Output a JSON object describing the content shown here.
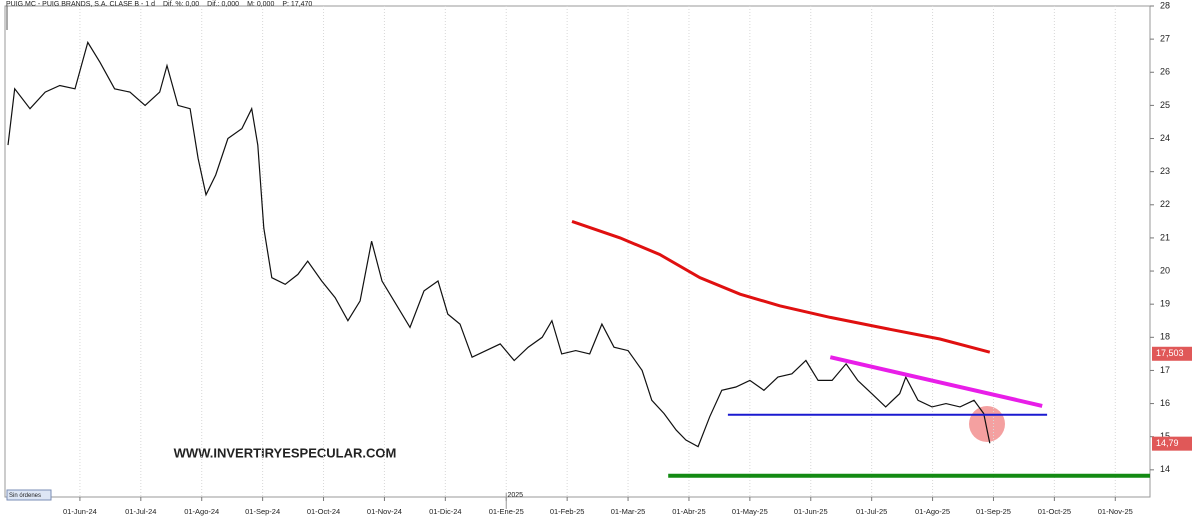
{
  "chart_data": {
    "type": "line",
    "header": [
      "PUIG.MC - PUIG BRANDS, S.A. CLASE B - 1 d",
      "Dif. %: 0,00",
      "Dif.: 0,000",
      "M: 0,000",
      "P: 17,470"
    ],
    "watermark": "WWW.INVERTIRYESPECULAR.COM",
    "year_marker": {
      "value": 7.0,
      "label": "2025"
    },
    "status": "Sin órdenes",
    "xlim": [
      -1.23,
      17.57
    ],
    "ylim": [
      13.18,
      28.0
    ],
    "yticks": [
      14,
      15,
      16,
      17,
      18,
      19,
      20,
      21,
      22,
      23,
      24,
      25,
      26,
      27,
      28
    ],
    "xticks": [
      {
        "value": 0,
        "label": "01-Jun-24"
      },
      {
        "value": 1,
        "label": "01-Jul-24"
      },
      {
        "value": 2,
        "label": "01-Ago-24"
      },
      {
        "value": 3,
        "label": "01-Sep-24"
      },
      {
        "value": 4,
        "label": "01-Oct-24"
      },
      {
        "value": 5,
        "label": "01-Nov-24"
      },
      {
        "value": 6,
        "label": "01-Dic-24"
      },
      {
        "value": 7,
        "label": "01-Ene-25"
      },
      {
        "value": 8,
        "label": "01-Feb-25"
      },
      {
        "value": 9,
        "label": "01-Mar-25"
      },
      {
        "value": 10,
        "label": "01-Abr-25"
      },
      {
        "value": 11,
        "label": "01-May-25"
      },
      {
        "value": 12,
        "label": "01-Jun-25"
      },
      {
        "value": 13,
        "label": "01-Jul-25"
      },
      {
        "value": 14,
        "label": "01-Ago-25"
      },
      {
        "value": 15,
        "label": "01-Sep-25"
      },
      {
        "value": 16,
        "label": "01-Oct-25"
      },
      {
        "value": 17,
        "label": "01-Nov-25"
      }
    ],
    "grid": true,
    "series": [
      {
        "name": "PUIG.MC",
        "color": "#111111",
        "width": 1.2,
        "x": [
          -1.18,
          -1.07,
          -0.82,
          -0.57,
          -0.33,
          -0.08,
          0.13,
          0.33,
          0.57,
          0.82,
          1.07,
          1.31,
          1.43,
          1.61,
          1.81,
          1.94,
          2.07,
          2.23,
          2.43,
          2.66,
          2.82,
          2.92,
          3.02,
          3.15,
          3.37,
          3.58,
          3.74,
          3.97,
          4.19,
          4.4,
          4.6,
          4.79,
          4.96,
          5.19,
          5.42,
          5.65,
          5.88,
          6.04,
          6.24,
          6.44,
          6.67,
          6.9,
          7.13,
          7.36,
          7.59,
          7.75,
          7.91,
          8.14,
          8.37,
          8.57,
          8.77,
          9.0,
          9.23,
          9.39,
          9.59,
          9.79,
          9.95,
          10.15,
          10.34,
          10.54,
          10.77,
          11.0,
          11.23,
          11.46,
          11.69,
          11.92,
          12.12,
          12.35,
          12.58,
          12.77,
          13.0,
          13.23,
          13.46,
          13.56,
          13.76,
          13.99,
          14.22,
          14.45,
          14.68,
          14.84,
          14.94
        ],
        "values": [
          23.8,
          25.5,
          24.9,
          25.4,
          25.6,
          25.5,
          26.9,
          26.3,
          25.5,
          25.4,
          25.0,
          25.4,
          26.2,
          25.0,
          24.9,
          23.4,
          22.3,
          22.9,
          24.0,
          24.3,
          24.9,
          23.8,
          21.3,
          19.8,
          19.6,
          19.9,
          20.3,
          19.7,
          19.2,
          18.5,
          19.1,
          20.9,
          19.7,
          19.0,
          18.3,
          19.4,
          19.7,
          18.7,
          18.4,
          17.4,
          17.6,
          17.8,
          17.3,
          17.7,
          18.0,
          18.5,
          17.5,
          17.6,
          17.5,
          18.4,
          17.7,
          17.6,
          17.0,
          16.1,
          15.7,
          15.2,
          14.9,
          14.7,
          15.6,
          16.4,
          16.5,
          16.7,
          16.4,
          16.8,
          16.9,
          17.3,
          16.7,
          16.7,
          17.2,
          16.7,
          16.3,
          15.9,
          16.3,
          16.8,
          16.1,
          15.9,
          16.0,
          15.9,
          16.1,
          15.7,
          14.8
        ]
      },
      {
        "color": "#e01010",
        "width": 3,
        "x": [
          8.08,
          8.87,
          9.52,
          10.18,
          10.84,
          11.49,
          12.32,
          13.14,
          14.12,
          14.94
        ],
        "values": [
          21.5,
          21.0,
          20.5,
          19.8,
          19.3,
          18.95,
          18.6,
          18.3,
          17.95,
          17.55
        ]
      },
      {
        "color": "#e81ee8",
        "width": 4,
        "x": [
          12.32,
          15.8
        ],
        "values": [
          17.4,
          15.93
        ]
      },
      {
        "color": "#1a1ad0",
        "width": 2,
        "x": [
          10.64,
          15.88
        ],
        "values": [
          15.66,
          15.66
        ]
      },
      {
        "color": "#138a13",
        "width": 4,
        "x": [
          9.66,
          17.57
        ],
        "values": [
          13.82,
          13.82
        ]
      }
    ],
    "price_labels": [
      {
        "value": 17.503,
        "label": "17,503",
        "color": "#e05858"
      },
      {
        "value": 14.79,
        "label": "14,79",
        "color": "#e05858"
      }
    ]
  }
}
